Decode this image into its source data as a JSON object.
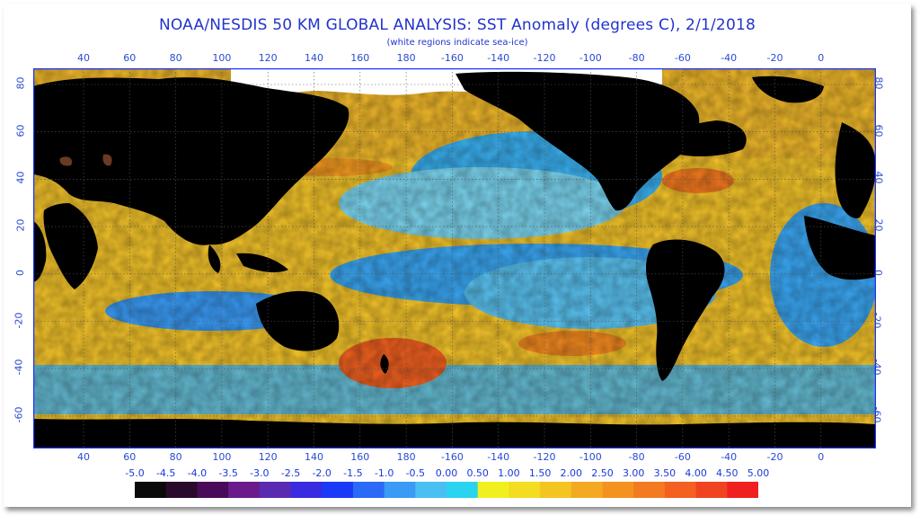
{
  "header": {
    "title": "NOAA/NESDIS 50 KM GLOBAL ANALYSIS: SST Anomaly (degrees C), 2/1/2018",
    "subtitle": "(white regions indicate sea-ice)"
  },
  "map": {
    "longitude_ticks": [
      "40",
      "60",
      "80",
      "100",
      "120",
      "140",
      "160",
      "180",
      "-160",
      "-140",
      "-120",
      "-100",
      "-80",
      "-60",
      "-40",
      "-20",
      "0"
    ],
    "latitude_ticks": [
      "80",
      "60",
      "40",
      "20",
      "0",
      "-20",
      "-40",
      "-60"
    ],
    "colors": {
      "land": "#000000",
      "sea_ice": "#ffffff",
      "frame": "#1a33ff",
      "grid": "#555555"
    }
  },
  "legend": {
    "labels": [
      "-5.0",
      "-4.5",
      "-4.0",
      "-3.5",
      "-3.0",
      "-2.5",
      "-2.0",
      "-1.5",
      "-1.0",
      "-0.5",
      "0.00",
      "0.50",
      "1.00",
      "1.50",
      "2.00",
      "2.50",
      "3.00",
      "3.50",
      "4.00",
      "4.50",
      "5.00"
    ],
    "colors": [
      "#0a0a0a",
      "#2a0a2a",
      "#4a0a5a",
      "#6a1a8a",
      "#5a2ab0",
      "#3a2ae0",
      "#1a3af8",
      "#2a6af6",
      "#3a9af4",
      "#4ac0f2",
      "#2ad4f0",
      "#f0f020",
      "#f4dc20",
      "#f4c420",
      "#f4aa20",
      "#f49220",
      "#f47a20",
      "#f46020",
      "#f04420",
      "#f02020"
    ]
  }
}
